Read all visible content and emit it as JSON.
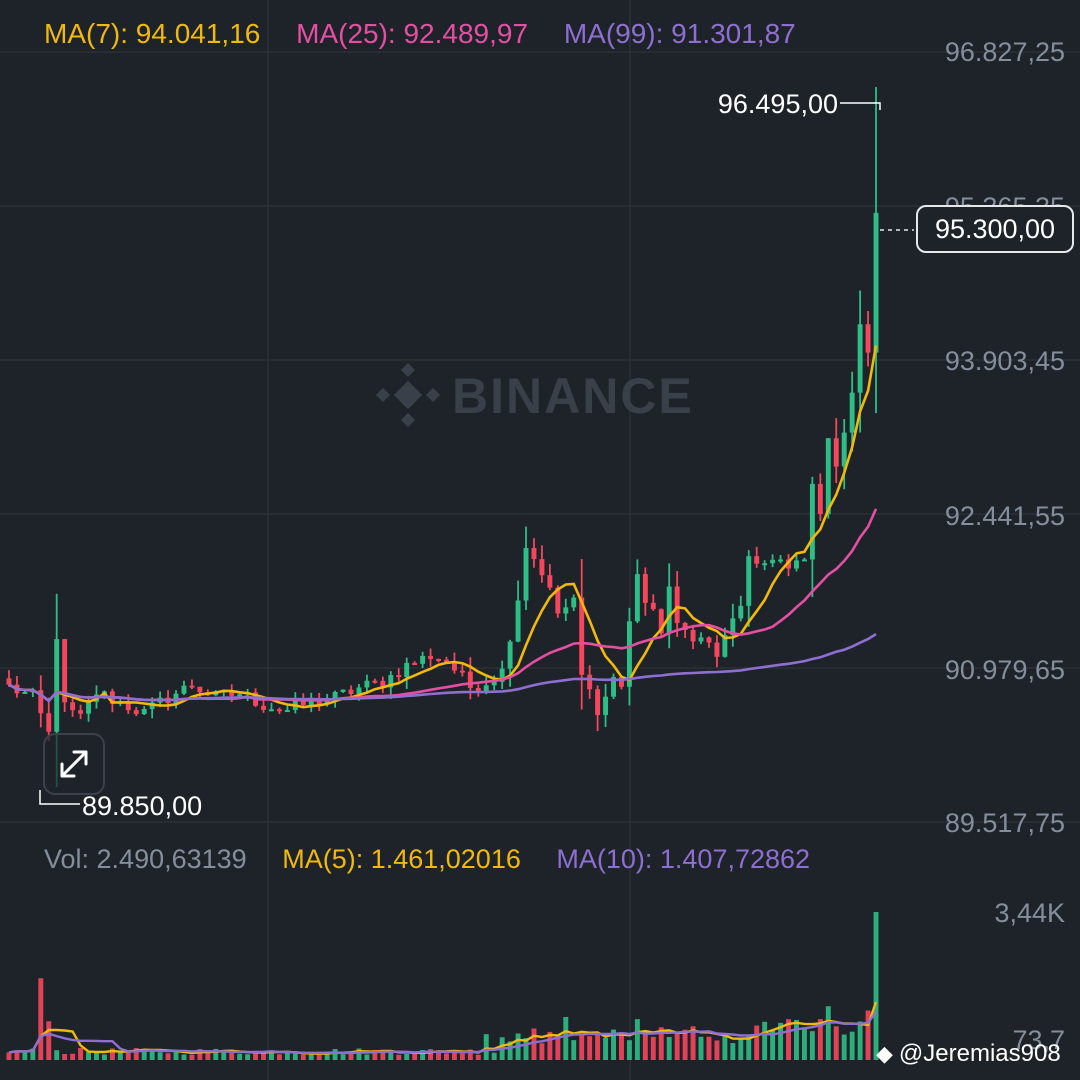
{
  "legend": {
    "ma7": "MA(7): 94.041,16",
    "ma25": "MA(25): 92.489,97",
    "ma99": "MA(99): 91.301,87"
  },
  "volume_legend": {
    "vol": "Vol: 2.490,63139",
    "ma5": "MA(5): 1.461,02016",
    "ma10": "MA(10): 1.407,72862"
  },
  "price_axis": [
    "96.827,25",
    "95.365,35",
    "93.903,45",
    "92.441,55",
    "90.979,65",
    "89.517,75"
  ],
  "volume_axis": [
    "3,44K",
    "73,7"
  ],
  "high_marker": "96.495,00",
  "low_marker": "89.850,00",
  "current_price": "95.300,00",
  "watermark": {
    "brand": "BINANCE",
    "user": "@Jeremias908"
  },
  "colors": {
    "background": "#1e2329",
    "grid": "#2b3139",
    "up": "#2ebd85",
    "down": "#f6465d",
    "ma7": "#f0b90b",
    "ma25": "#e44fa3",
    "ma99": "#8e6fd1",
    "axis_text": "#848e9c"
  },
  "icons": {
    "expand": "expand-arrows-icon",
    "logo": "binance-logo-icon"
  },
  "chart_data": [
    {
      "type": "candlestick",
      "x_count": 110,
      "ylim": [
        89517.75,
        96827.25
      ],
      "yticks": [
        96827.25,
        95365.35,
        93903.45,
        92441.55,
        90979.65,
        89517.75
      ],
      "high": 96495.0,
      "low": 89850.0,
      "last": 95300.0,
      "grid": true,
      "keypoints": [
        [
          0,
          90800
        ],
        [
          3,
          90700
        ],
        [
          5,
          90350
        ],
        [
          6,
          91300
        ],
        [
          7,
          90600
        ],
        [
          9,
          90500
        ],
        [
          11,
          90750
        ],
        [
          14,
          90650
        ],
        [
          17,
          90550
        ],
        [
          20,
          90700
        ],
        [
          23,
          90820
        ],
        [
          26,
          90700
        ],
        [
          29,
          90740
        ],
        [
          32,
          90630
        ],
        [
          35,
          90580
        ],
        [
          38,
          90660
        ],
        [
          41,
          90700
        ],
        [
          44,
          90790
        ],
        [
          47,
          90850
        ],
        [
          50,
          91000
        ],
        [
          53,
          91100
        ],
        [
          55,
          91050
        ],
        [
          58,
          90800
        ],
        [
          60,
          90850
        ],
        [
          62,
          90950
        ],
        [
          64,
          91650
        ],
        [
          65,
          92150
        ],
        [
          67,
          91900
        ],
        [
          68,
          91700
        ],
        [
          69,
          91500
        ],
        [
          71,
          91600
        ],
        [
          72,
          90900
        ],
        [
          74,
          90600
        ],
        [
          75,
          90700
        ],
        [
          76,
          90900
        ],
        [
          77,
          90800
        ],
        [
          78,
          91400
        ],
        [
          79,
          91900
        ],
        [
          80,
          91600
        ],
        [
          82,
          91350
        ],
        [
          83,
          91750
        ],
        [
          84,
          91350
        ],
        [
          86,
          91300
        ],
        [
          88,
          91200
        ],
        [
          89,
          91100
        ],
        [
          90,
          91250
        ],
        [
          92,
          91600
        ],
        [
          93,
          92000
        ],
        [
          94,
          91900
        ],
        [
          96,
          92050
        ],
        [
          97,
          92000
        ],
        [
          98,
          91900
        ],
        [
          100,
          92000
        ],
        [
          101,
          92700
        ],
        [
          102,
          92500
        ],
        [
          103,
          93100
        ],
        [
          104,
          92950
        ],
        [
          105,
          93250
        ],
        [
          106,
          93600
        ],
        [
          107,
          94200
        ],
        [
          108,
          94000
        ],
        [
          109,
          95300
        ]
      ],
      "series": [
        {
          "name": "MA(7)",
          "last": 94041.16,
          "window": 7
        },
        {
          "name": "MA(25)",
          "last": 92489.97,
          "window": 25
        },
        {
          "name": "MA(99)",
          "last": 91301.87,
          "window": 99
        }
      ]
    },
    {
      "type": "bar",
      "yticks_label": [
        "3,44K",
        "73,7"
      ],
      "last": 2490.63139,
      "peaks": [
        [
          4,
          1900
        ],
        [
          5,
          900
        ],
        [
          60,
          600
        ],
        [
          70,
          1000
        ],
        [
          79,
          950
        ],
        [
          94,
          800
        ],
        [
          102,
          950
        ],
        [
          103,
          1250
        ],
        [
          108,
          1150
        ],
        [
          109,
          3440
        ]
      ],
      "series": [
        {
          "name": "MA(5)",
          "last": 1461.02016,
          "window": 5
        },
        {
          "name": "MA(10)",
          "last": 1407.72862,
          "window": 10
        }
      ]
    }
  ]
}
